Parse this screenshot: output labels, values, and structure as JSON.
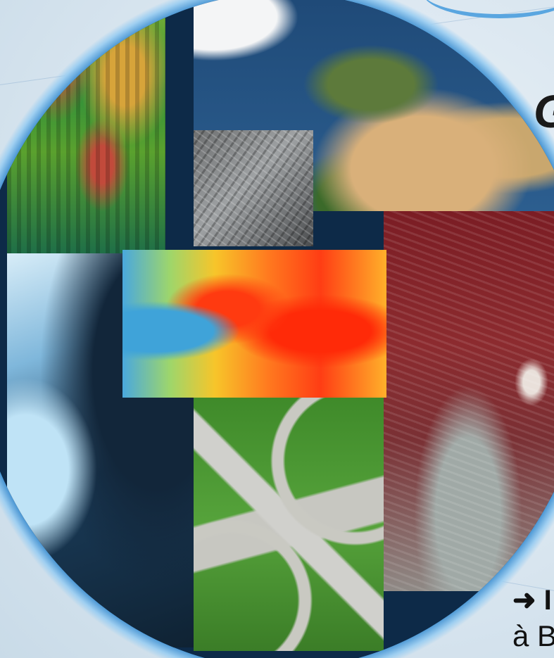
{
  "poster": {
    "title_fragment": "G",
    "arrow_text": "➜ I",
    "caption_fragment": "à B"
  },
  "tiles": [
    {
      "name": "lidar-terrain-tile",
      "kind": "3D LiDAR surface model"
    },
    {
      "name": "earth-satellite-tile",
      "kind": "global satellite view"
    },
    {
      "name": "aerial-city-tile",
      "kind": "grayscale aerial urban photo"
    },
    {
      "name": "elevation-map-tile",
      "kind": "colored digital elevation model"
    },
    {
      "name": "false-color-satellite-tile",
      "kind": "false-color satellite imagery"
    },
    {
      "name": "glacier-ice-tile",
      "kind": "ice and forest aerial view"
    },
    {
      "name": "highway-interchange-tile",
      "kind": "aerial highway interchange"
    }
  ],
  "colors": {
    "globe_rim": "#3f8fd0",
    "background": "#dfe9f1",
    "text": "#111111"
  }
}
